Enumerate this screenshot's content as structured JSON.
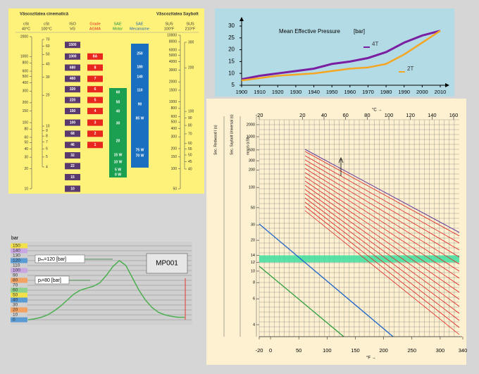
{
  "viscosity_table": {
    "title_kinematic": "Vâscozitatea cinematică",
    "title_saybolt": "Vâscozitatea Saybolt",
    "headers": [
      [
        "cSt",
        "40°C"
      ],
      [
        "cSt",
        "100°C"
      ],
      [
        "ISO",
        "VG"
      ],
      [
        "Grade",
        "AGMA"
      ],
      [
        "SAE",
        "Motor"
      ],
      [
        "SAE",
        "Mecanisme"
      ],
      [
        "SUS",
        "100°F"
      ],
      [
        "SUS",
        "210°F"
      ]
    ],
    "cst40": {
      "lim": [
        10,
        2000
      ],
      "log": true,
      "ticks": [
        2000,
        1000,
        800,
        600,
        500,
        400,
        300,
        200,
        150,
        100,
        80,
        60,
        50,
        40,
        30,
        20,
        10
      ]
    },
    "cst100": {
      "lim": [
        4,
        70
      ],
      "log": true,
      "ticks": [
        70,
        60,
        50,
        40,
        30,
        20,
        10,
        9,
        8,
        7,
        6,
        5,
        4
      ]
    },
    "sus100": {
      "lim": [
        50,
        10000
      ],
      "log": true,
      "ticks": [
        10000,
        8000,
        6000,
        5000,
        4000,
        3000,
        2000,
        1500,
        1000,
        800,
        600,
        500,
        400,
        300,
        200,
        150,
        100,
        50
      ]
    },
    "sus210": {
      "lim": [
        40,
        300
      ],
      "log": true,
      "ticks": [
        300,
        200,
        100,
        90,
        80,
        70,
        60,
        55,
        50,
        45,
        40
      ]
    },
    "iso_vg": [
      1500,
      1000,
      680,
      460,
      320,
      220,
      150,
      100,
      68,
      46,
      32,
      22,
      15,
      10
    ],
    "agma": [
      "8A",
      "8",
      "7",
      "6",
      "5",
      "4",
      "3",
      "2",
      "1"
    ],
    "sae_motor": [
      "60",
      "50",
      "40",
      "30",
      "20",
      "15 W",
      "10 W",
      "5 W",
      "0 W"
    ],
    "sae_gear": [
      "250",
      "180",
      "140",
      "110",
      "90",
      "85 W",
      "75 W",
      "70 W"
    ]
  },
  "chart_data": [
    {
      "type": "line",
      "title": "Mean Effective Pressure",
      "unit": "[bar]",
      "x": [
        1900,
        1910,
        1920,
        1930,
        1940,
        1950,
        1960,
        1970,
        1980,
        1990,
        2000,
        2010
      ],
      "xlim": [
        1900,
        2010
      ],
      "xticks": [
        1900,
        1910,
        1920,
        1930,
        1940,
        1950,
        1960,
        1970,
        1980,
        1990,
        2000,
        2010
      ],
      "ylim": [
        5,
        30
      ],
      "yticks": [
        5,
        10,
        15,
        20,
        25,
        30
      ],
      "series": [
        {
          "name": "4T",
          "color": "#7b1fa2",
          "values": [
            7.5,
            9,
            10,
            11,
            12,
            14,
            15,
            16.5,
            19,
            23,
            26,
            28
          ]
        },
        {
          "name": "2T",
          "color": "#f5a623",
          "values": [
            7,
            8,
            9,
            9.5,
            10,
            11,
            12,
            12.5,
            14,
            18,
            23,
            28
          ]
        }
      ]
    },
    {
      "type": "line",
      "y_label": "bar",
      "ylim": [
        0,
        150
      ],
      "yticks": [
        150,
        140,
        130,
        120,
        110,
        100,
        90,
        80,
        70,
        60,
        50,
        40,
        30,
        20,
        10,
        0
      ],
      "color": "#4caf50",
      "values": [
        0,
        2,
        5,
        10,
        18,
        28,
        40,
        52,
        60,
        64,
        68,
        75,
        90,
        108,
        120,
        110,
        85,
        60,
        40,
        25,
        15,
        10,
        7,
        5,
        5
      ],
      "annotations": [
        "pₘ=120 [bar]",
        "pᵢ=80 [bar]",
        "MP001"
      ]
    },
    {
      "type": "viscosity-temperature",
      "y_headers": [
        "Sec. Redwood I (s)",
        "Sec. Saybolt Universal (s)",
        "mm²/s (cSt)"
      ],
      "yscale": "loglog",
      "ylim": [
        4,
        2000
      ],
      "yticks": [
        2000,
        1000,
        500,
        300,
        200,
        100,
        50,
        30,
        20,
        14,
        12,
        10,
        8,
        6,
        4
      ],
      "xlim": [
        -20,
        340
      ],
      "xticks": [
        -20,
        0,
        50,
        100,
        150,
        200,
        250,
        300,
        340
      ],
      "x_label": "°F →",
      "x2lim": [
        -20,
        160
      ],
      "x2ticks": [
        -20,
        20,
        40,
        60,
        80,
        100,
        120,
        140,
        160
      ],
      "x2_label": "°C →",
      "band": [
        12,
        14
      ]
    }
  ]
}
